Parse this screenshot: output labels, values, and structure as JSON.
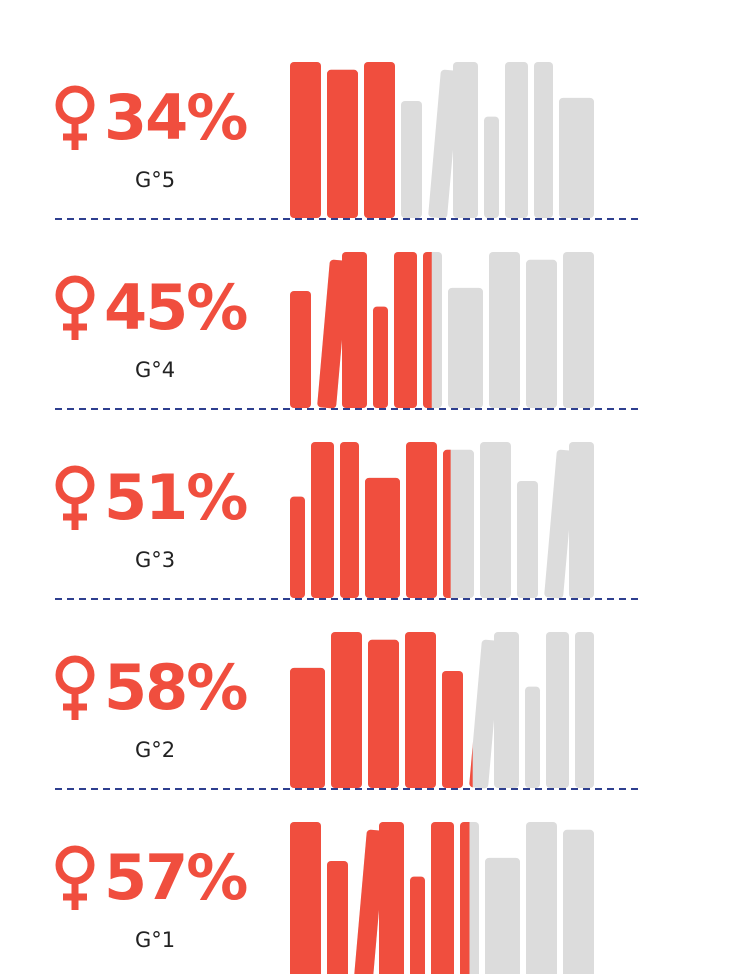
{
  "chart_data": {
    "type": "pictograph",
    "categories": [
      "G°5",
      "G°4",
      "G°3",
      "G°2",
      "G°1"
    ],
    "values": [
      34,
      45,
      51,
      58,
      57
    ],
    "value_labels": [
      "34%",
      "45%",
      "51%",
      "58%",
      "57%"
    ],
    "color": "#f04e3e",
    "xlim": [
      0,
      100
    ]
  }
}
